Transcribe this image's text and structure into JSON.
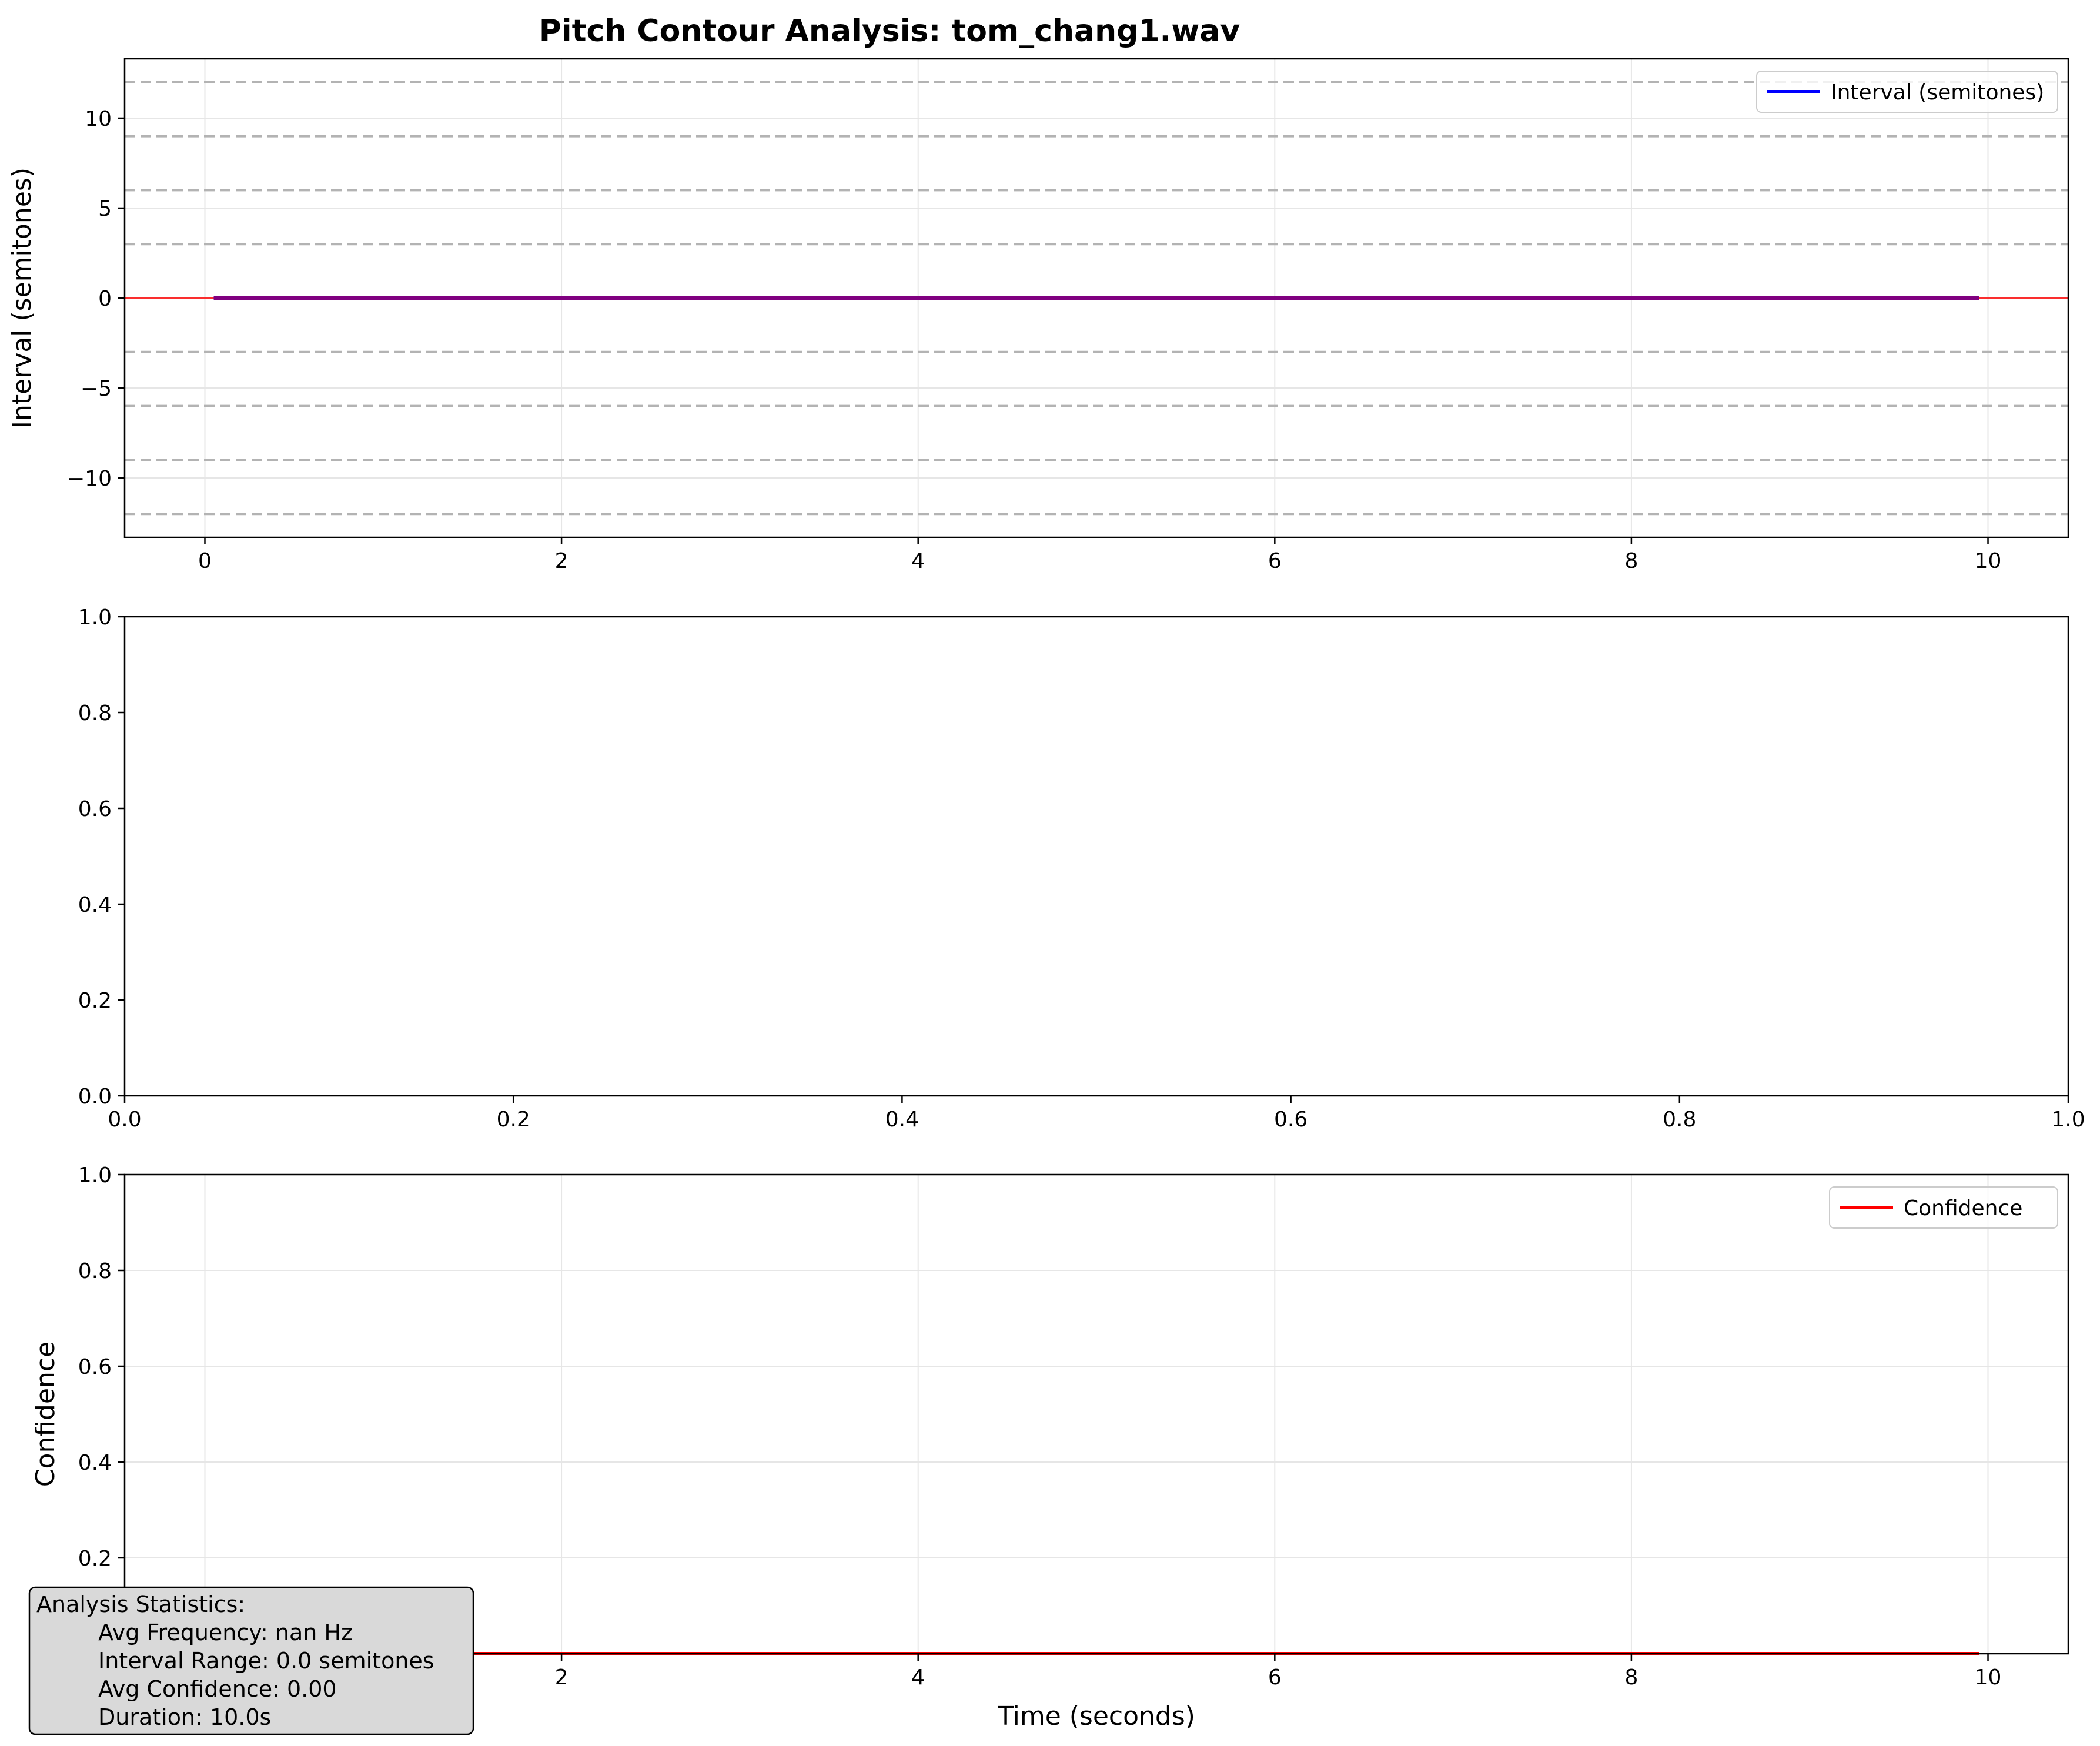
{
  "colors": {
    "interval": "#0000ff",
    "reference": "#ff0000",
    "overlap": "#800080",
    "dashed": "#b3b3b3",
    "grid": "#e6e6e6",
    "stats_bg": "#d9d9d9"
  },
  "chart_data": [
    {
      "type": "line",
      "title": "Pitch Contour Analysis: tom_chang1.wav",
      "ylabel": "Interval (semitones)",
      "xlabel": "",
      "xlim": [
        -0.45,
        10.45
      ],
      "ylim": [
        -13.3,
        13.3
      ],
      "xticks": [
        0,
        2,
        4,
        6,
        8,
        10
      ],
      "yticks": [
        -10,
        -5,
        0,
        5,
        10
      ],
      "ytick_labels": [
        "−10",
        "−5",
        "0",
        "5",
        "10"
      ],
      "grid": true,
      "reference_lines": [
        -12,
        -9,
        -6,
        -3,
        3,
        6,
        9,
        12
      ],
      "zero_line": 0,
      "legend_position": "top-right",
      "series": [
        {
          "name": "Interval (semitones)",
          "x": [
            0.05,
            9.95
          ],
          "y": [
            0,
            0
          ]
        }
      ]
    },
    {
      "type": "line",
      "title": "",
      "xlabel": "",
      "ylabel": "",
      "xlim": [
        0.0,
        1.0
      ],
      "ylim": [
        0.0,
        1.0
      ],
      "xticks": [
        0.0,
        0.2,
        0.4,
        0.6,
        0.8,
        1.0
      ],
      "yticks": [
        0.0,
        0.2,
        0.4,
        0.6,
        0.8,
        1.0
      ],
      "grid": false,
      "series": []
    },
    {
      "type": "line",
      "title": "",
      "xlabel": "Time (seconds)",
      "ylabel": "Confidence",
      "xlim": [
        -0.45,
        10.45
      ],
      "ylim": [
        0.0,
        1.0
      ],
      "xticks": [
        0,
        2,
        4,
        6,
        8,
        10
      ],
      "yticks": [
        0.0,
        0.2,
        0.4,
        0.6,
        0.8,
        1.0
      ],
      "grid": true,
      "legend_position": "top-right",
      "series": [
        {
          "name": "Confidence",
          "x": [
            0.05,
            9.95
          ],
          "y": [
            0,
            0
          ]
        }
      ]
    }
  ],
  "stats": {
    "heading": "Analysis Statistics:",
    "lines": [
      "Avg Frequency: nan Hz",
      "Interval Range: 0.0 semitones",
      "Avg Confidence: 0.00",
      "Duration: 10.0s"
    ]
  }
}
